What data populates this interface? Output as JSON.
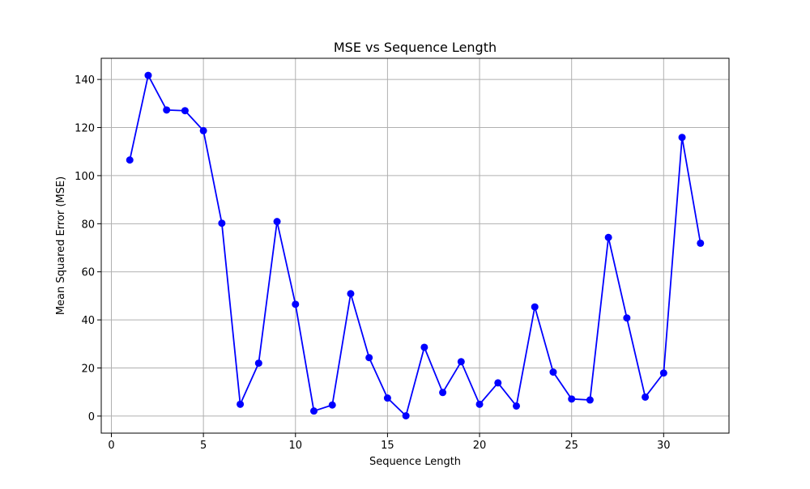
{
  "chart_data": {
    "type": "line",
    "title": "MSE vs Sequence Length",
    "xlabel": "Sequence Length",
    "ylabel": "Mean Squared Error (MSE)",
    "xlim": [
      -0.55,
      33.55
    ],
    "ylim": [
      -7.1,
      148.8
    ],
    "xticks": [
      0,
      5,
      10,
      15,
      20,
      25,
      30
    ],
    "yticks": [
      0,
      20,
      40,
      60,
      80,
      100,
      120,
      140
    ],
    "grid": true,
    "series": [
      {
        "color": "#0000ff",
        "marker": "circle",
        "x": [
          1,
          2,
          3,
          4,
          5,
          6,
          7,
          8,
          9,
          10,
          11,
          12,
          13,
          14,
          15,
          16,
          17,
          18,
          19,
          20,
          21,
          22,
          23,
          24,
          25,
          26,
          27,
          28,
          29,
          30,
          31,
          32
        ],
        "y": [
          106.5,
          141.7,
          127.3,
          127.0,
          118.7,
          80.2,
          4.9,
          22.0,
          80.9,
          46.5,
          2.1,
          4.6,
          50.9,
          24.3,
          7.5,
          0.1,
          28.6,
          9.8,
          22.6,
          4.9,
          13.8,
          4.2,
          45.4,
          18.3,
          7.1,
          6.7,
          74.3,
          40.8,
          7.9,
          17.9,
          115.9,
          71.9
        ]
      }
    ]
  }
}
